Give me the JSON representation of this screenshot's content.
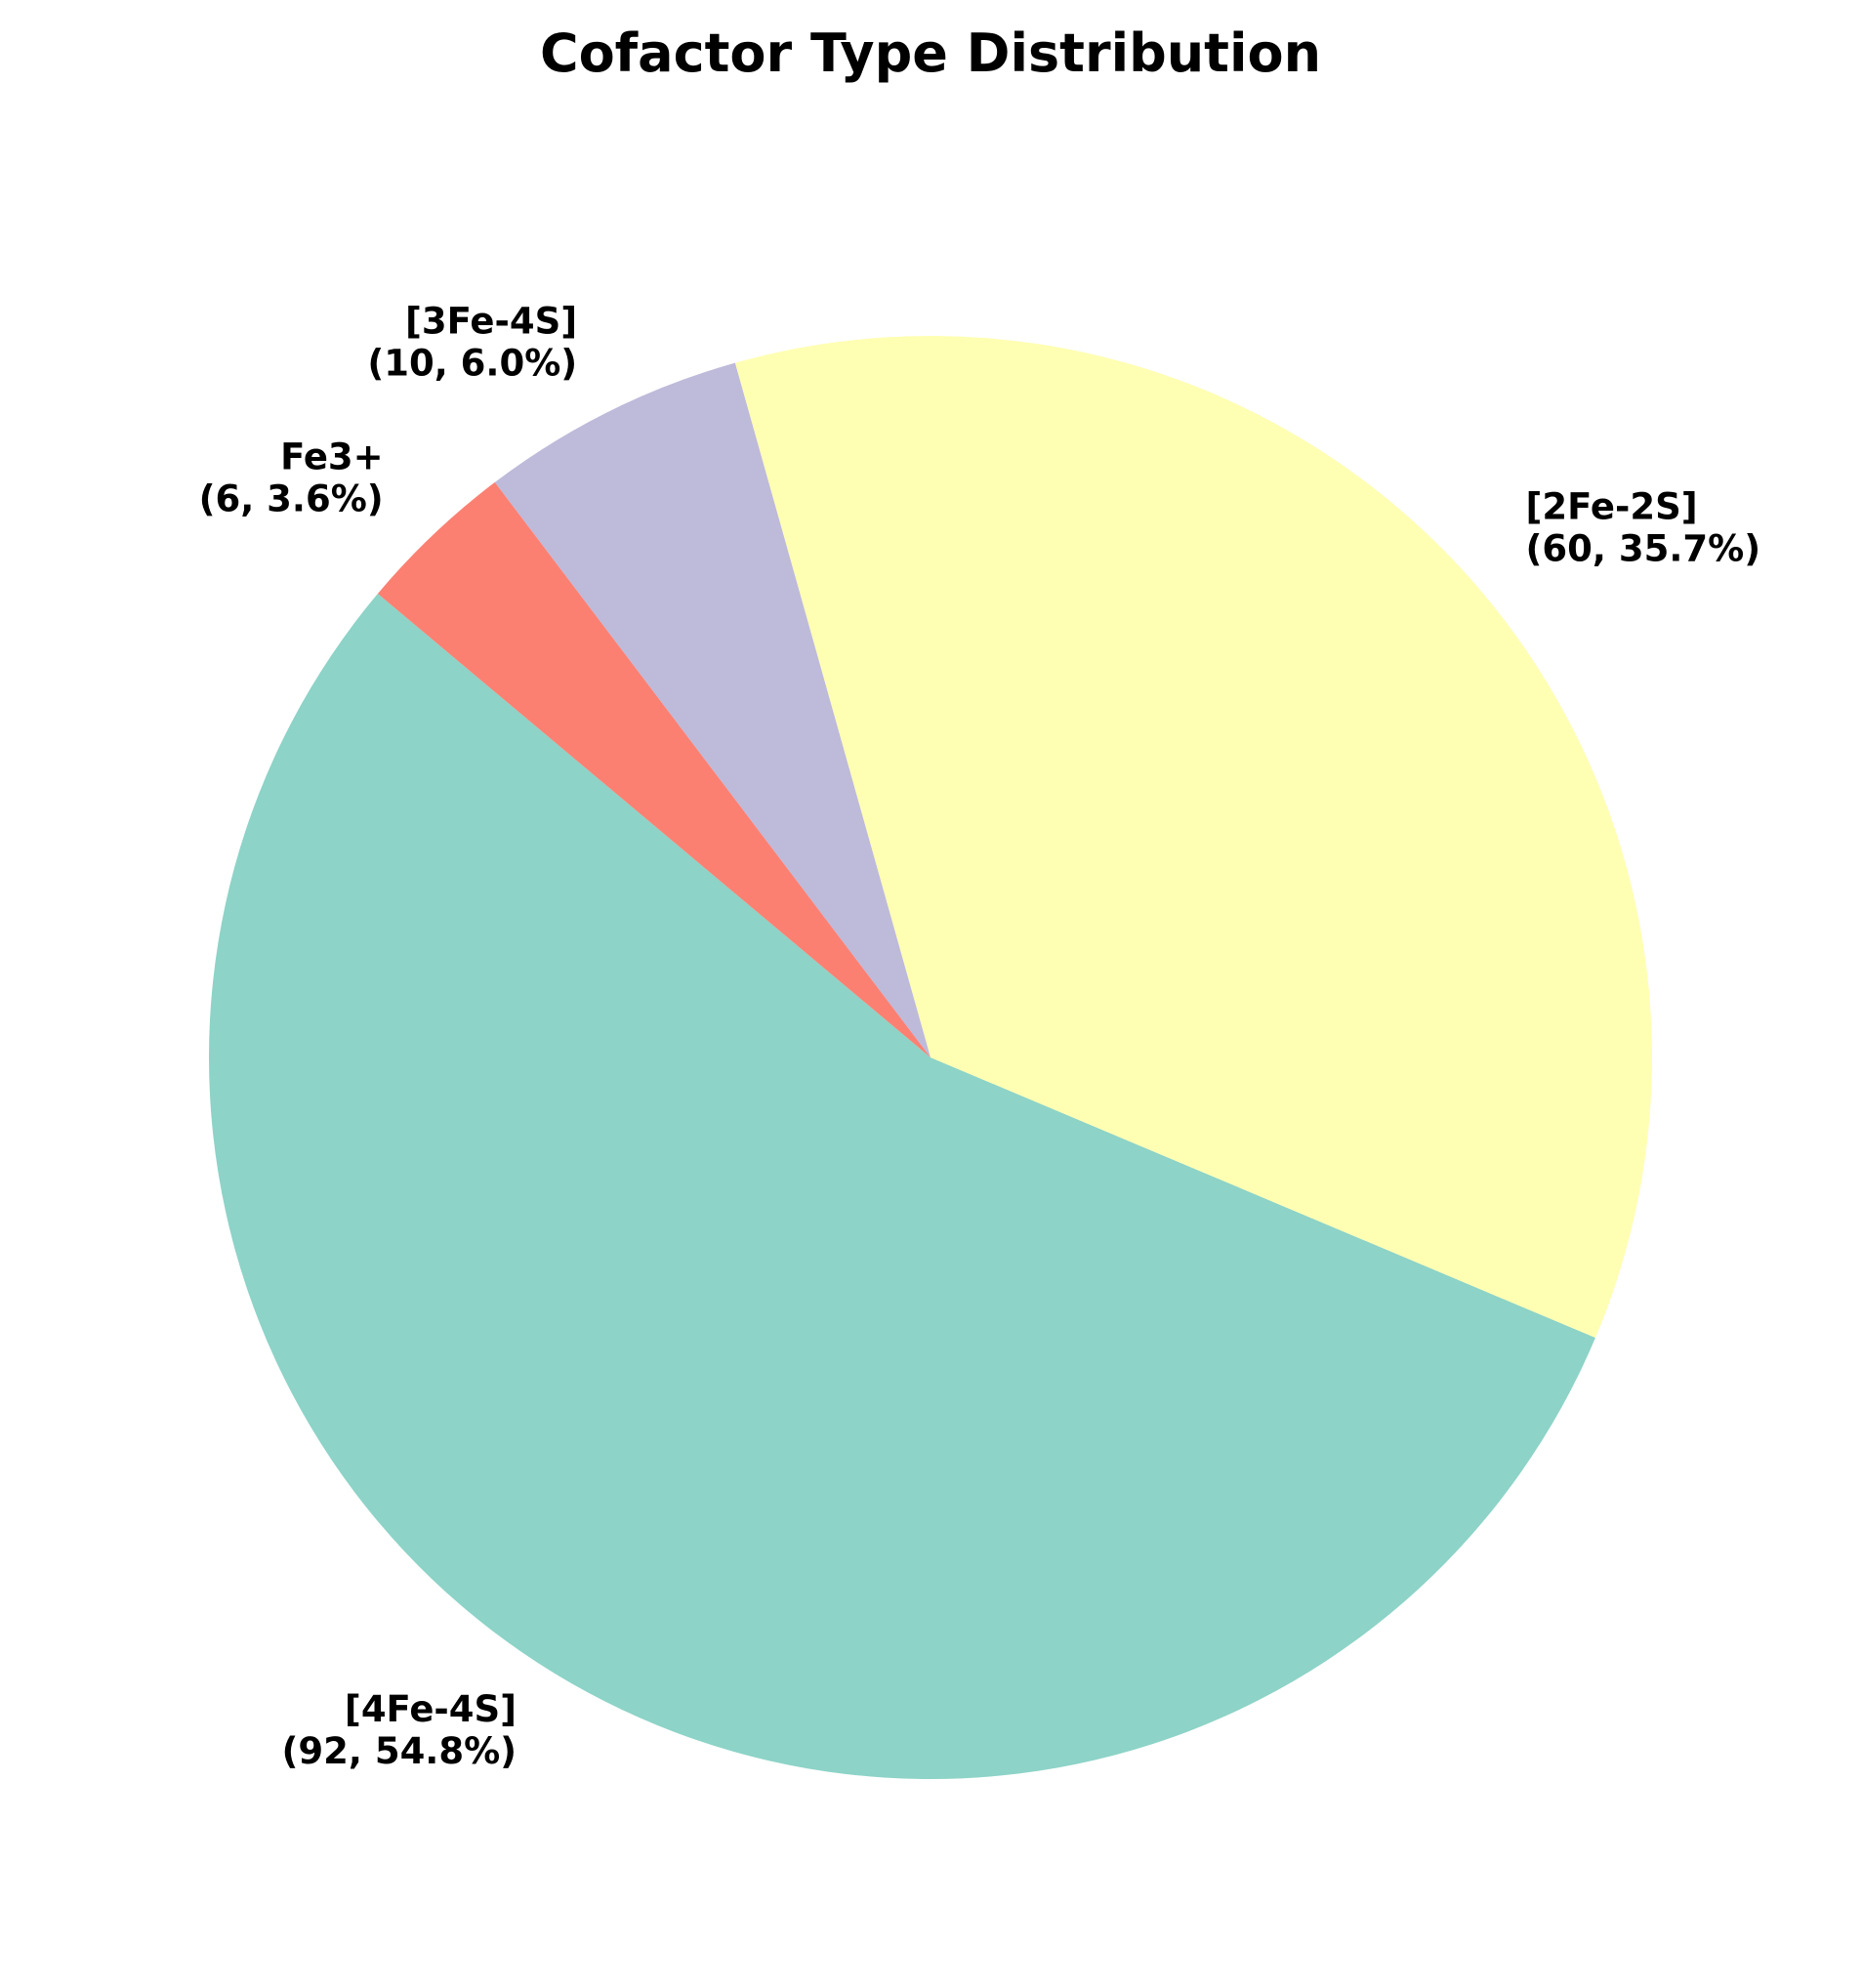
{
  "chart_data": {
    "type": "pie",
    "title": "Cofactor Type Distribution",
    "start_angle_deg": 140,
    "direction": "counterclockwise",
    "slices": [
      {
        "label": "[4Fe-4S]",
        "value": 92,
        "percent_label": "(92, 54.8%)",
        "color": "#8dd3c7"
      },
      {
        "label": "[2Fe-2S]",
        "value": 60,
        "percent_label": "(60, 35.7%)",
        "color": "#ffffb3"
      },
      {
        "label": "[3Fe-4S]",
        "value": 10,
        "percent_label": "(10, 6.0%)",
        "color": "#bebada"
      },
      {
        "label": "Fe3+",
        "value": 6,
        "percent_label": "(6, 3.6%)",
        "color": "#fb8072"
      }
    ]
  }
}
